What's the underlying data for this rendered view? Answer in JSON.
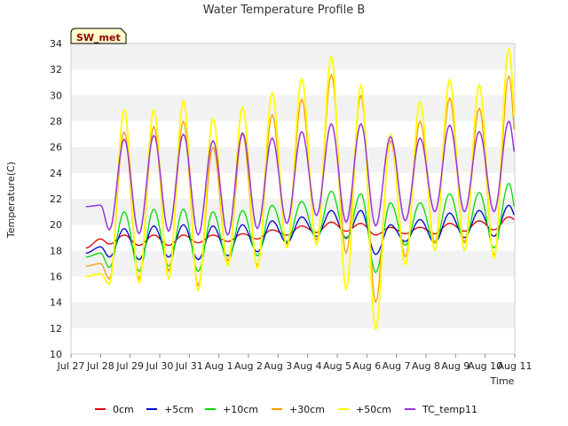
{
  "chart_data": {
    "type": "line",
    "title": "Water Temperature Profile B",
    "xlabel": "Time",
    "ylabel": "Temperature(C)",
    "station_badge": "SW_met",
    "ylim": [
      10,
      34
    ],
    "yticks": [
      10,
      12,
      14,
      16,
      18,
      20,
      22,
      24,
      26,
      28,
      30,
      32,
      34
    ],
    "x_tick_labels": [
      "Jul 27",
      "Jul 28",
      "Jul 29",
      "Jul 30",
      "Jul 31",
      "Aug 1",
      "Aug 2",
      "Aug 3",
      "Aug 4",
      "Aug 5",
      "Aug 6",
      "Aug 7",
      "Aug 8",
      "Aug 9",
      "Aug 10",
      "Aug 11"
    ],
    "xlim_days": [
      0,
      15
    ],
    "x_unit": "days from Jul 27",
    "grid": "horizontal bands",
    "legend_position": "bottom",
    "series": [
      {
        "name": "0cm",
        "color": "#dd0000",
        "lw": 1.3,
        "x": [
          0.5,
          1.3,
          2.3,
          3.3,
          4.3,
          5.3,
          6.3,
          7.3,
          8.3,
          9.3,
          10.3,
          11.3,
          12.3,
          13.3,
          14.3
        ],
        "min": [
          18.2,
          18.5,
          18.4,
          18.4,
          18.6,
          18.7,
          18.9,
          19.2,
          19.4,
          19.5,
          19.2,
          19.3,
          19.3,
          19.5,
          19.6
        ],
        "max": [
          18.9,
          19.2,
          19.2,
          19.2,
          19.2,
          19.3,
          19.6,
          19.9,
          20.2,
          20.1,
          19.8,
          19.8,
          20.1,
          20.3,
          20.6
        ],
        "end": 20.2
      },
      {
        "name": "+5cm",
        "color": "#0000cc",
        "lw": 1.3,
        "x": [
          0.5,
          1.3,
          2.3,
          3.3,
          4.3,
          5.3,
          6.3,
          7.3,
          8.3,
          9.3,
          10.3,
          11.3,
          12.3,
          13.3,
          14.3
        ],
        "min": [
          17.8,
          17.5,
          17.3,
          17.5,
          17.3,
          17.6,
          17.9,
          18.6,
          19.1,
          19.0,
          17.7,
          18.7,
          18.6,
          19.0,
          19.1
        ],
        "max": [
          18.3,
          19.7,
          19.9,
          20.0,
          19.9,
          20.0,
          20.3,
          20.6,
          21.1,
          21.1,
          20.0,
          20.4,
          20.9,
          21.1,
          21.5
        ],
        "end": 20.0
      },
      {
        "name": "+10cm",
        "color": "#00dd00",
        "lw": 1.3,
        "x": [
          0.5,
          1.3,
          2.3,
          3.3,
          4.3,
          5.3,
          6.3,
          7.3,
          8.3,
          9.3,
          10.3,
          11.3,
          12.3,
          13.3,
          14.3
        ],
        "min": [
          17.5,
          16.7,
          16.4,
          16.8,
          16.4,
          17.2,
          17.6,
          18.7,
          18.9,
          18.9,
          16.3,
          18.4,
          18.6,
          18.7,
          18.2
        ],
        "max": [
          17.8,
          21.0,
          21.2,
          21.2,
          21.0,
          21.1,
          21.5,
          21.8,
          22.6,
          22.4,
          21.7,
          21.7,
          22.4,
          22.5,
          23.2
        ],
        "end": 19.6
      },
      {
        "name": "+30cm",
        "color": "#ff9900",
        "lw": 1.3,
        "x": [
          0.5,
          1.3,
          2.3,
          3.3,
          4.3,
          5.3,
          6.3,
          7.3,
          8.3,
          9.3,
          10.3,
          11.3,
          12.3,
          13.3,
          14.3
        ],
        "min": [
          16.8,
          15.8,
          15.8,
          16.4,
          15.3,
          17.2,
          16.8,
          18.4,
          18.8,
          17.8,
          14.0,
          17.5,
          18.6,
          18.6,
          17.6
        ],
        "max": [
          17.0,
          27.2,
          27.6,
          28.0,
          26.0,
          27.0,
          28.5,
          29.7,
          31.6,
          30.0,
          26.5,
          28.0,
          29.8,
          29.0,
          31.5
        ],
        "end": 23.2
      },
      {
        "name": "+50cm",
        "color": "#ffff00",
        "lw": 1.8,
        "x": [
          0.5,
          1.3,
          2.3,
          3.3,
          4.3,
          5.3,
          6.3,
          7.3,
          8.3,
          9.3,
          10.3,
          11.3,
          12.3,
          13.3,
          14.3
        ],
        "min": [
          16.0,
          15.4,
          15.5,
          15.8,
          14.9,
          16.8,
          16.6,
          18.2,
          18.4,
          15.0,
          11.9,
          16.9,
          18.0,
          18.0,
          17.4
        ],
        "max": [
          16.2,
          28.9,
          28.9,
          29.6,
          28.2,
          29.1,
          30.2,
          31.3,
          33.0,
          30.8,
          27.0,
          29.5,
          31.2,
          30.8,
          33.6
        ],
        "end": 23.3
      },
      {
        "name": "TC_temp11",
        "color": "#9933dd",
        "lw": 1.5,
        "x": [
          0.5,
          1.3,
          2.3,
          3.3,
          4.3,
          5.3,
          6.3,
          7.3,
          8.3,
          9.3,
          10.3,
          11.3,
          12.3,
          13.3,
          14.3
        ],
        "min": [
          21.4,
          19.6,
          19.3,
          19.5,
          19.2,
          19.2,
          19.7,
          20.1,
          20.7,
          20.2,
          19.9,
          20.3,
          21.0,
          21.0,
          21.0
        ],
        "max": [
          21.5,
          26.6,
          26.9,
          27.0,
          26.5,
          27.1,
          26.7,
          27.2,
          27.8,
          27.8,
          26.8,
          26.7,
          27.7,
          27.2,
          28.0
        ],
        "end": 23.3
      }
    ]
  }
}
